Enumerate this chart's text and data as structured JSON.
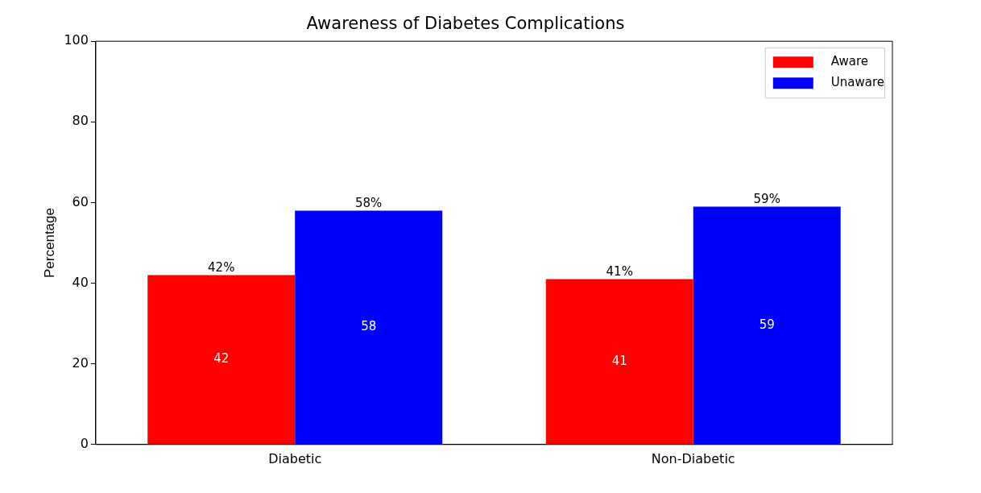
{
  "chart_data": {
    "type": "bar",
    "title": "Awareness of Diabetes Complications",
    "ylabel": "Percentage",
    "categories": [
      "Diabetic",
      "Non-Diabetic"
    ],
    "series": [
      {
        "name": "Aware",
        "color": "#ff0000",
        "values": [
          42,
          41
        ]
      },
      {
        "name": "Unaware",
        "color": "#0000ff",
        "values": [
          58,
          59
        ]
      }
    ],
    "annotations": [
      "42%",
      "58%",
      "41%",
      "59%"
    ],
    "data_labels": true,
    "ylim": [
      0,
      100
    ],
    "yticks": [
      0,
      20,
      40,
      60,
      80,
      100
    ],
    "grid": false,
    "legend": "top right"
  }
}
